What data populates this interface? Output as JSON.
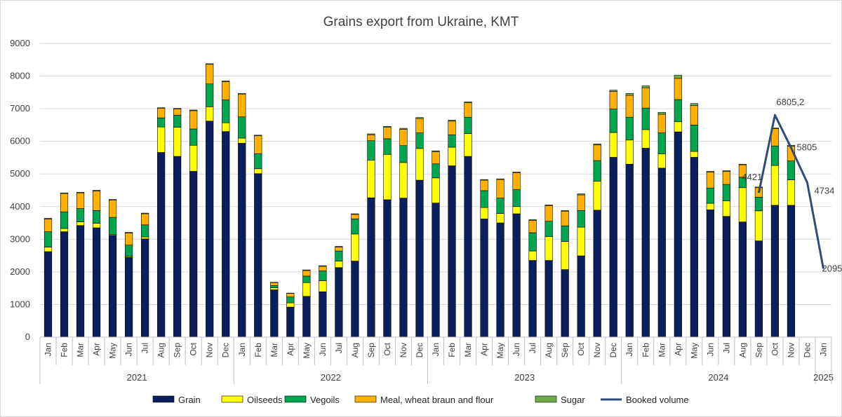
{
  "chart_data": {
    "type": "bar",
    "stacked": true,
    "title": "Grains export from Ukraine, KMT",
    "xlabel": "",
    "ylabel": "",
    "ylim": [
      0,
      9000
    ],
    "yticks": [
      0,
      1000,
      2000,
      3000,
      4000,
      5000,
      6000,
      7000,
      8000,
      9000
    ],
    "grid": true,
    "legend_position": "bottom",
    "years": [
      {
        "label": "2021",
        "months": 12
      },
      {
        "label": "2022",
        "months": 12
      },
      {
        "label": "2023",
        "months": 12
      },
      {
        "label": "2024",
        "months": 12
      },
      {
        "label": "2025",
        "months": 1
      }
    ],
    "categories": [
      "Jan",
      "Feb",
      "Mar",
      "Apr",
      "May",
      "Jun",
      "Jul",
      "Aug",
      "Sep",
      "Oct",
      "Nov",
      "Dec",
      "Jan",
      "Feb",
      "Mar",
      "Apr",
      "May",
      "Jun",
      "Jul",
      "Aug",
      "Sep",
      "Oct",
      "Nov",
      "Dec",
      "Jan",
      "Feb",
      "Mar",
      "Apr",
      "May",
      "Jun",
      "Jul",
      "Aug",
      "Sep",
      "Oct",
      "Nov",
      "Dec",
      "Jan",
      "Feb",
      "Mar",
      "Apr",
      "May",
      "Jun",
      "Jul",
      "Aug",
      "Sep",
      "Oct",
      "Nov",
      "Dec",
      "Jan"
    ],
    "series": [
      {
        "name": "Grain",
        "color": "#0c1f5c",
        "values": [
          2620,
          3230,
          3420,
          3350,
          3120,
          2450,
          3010,
          5660,
          5540,
          5080,
          6620,
          6300,
          5940,
          5010,
          1450,
          920,
          1250,
          1390,
          2130,
          2330,
          4270,
          4210,
          4260,
          4810,
          4110,
          5250,
          5540,
          3620,
          3500,
          3780,
          2350,
          2350,
          2070,
          2490,
          3890,
          5510,
          5300,
          5790,
          5180,
          6290,
          5510,
          3900,
          3700,
          3530,
          2950,
          4040,
          4040,
          null,
          null
        ]
      },
      {
        "name": "Oilseeds",
        "color": "#ffff00",
        "values": [
          140,
          100,
          110,
          140,
          30,
          30,
          60,
          780,
          890,
          800,
          440,
          270,
          160,
          150,
          60,
          130,
          420,
          340,
          200,
          830,
          1150,
          1390,
          1090,
          970,
          770,
          570,
          700,
          350,
          290,
          220,
          290,
          730,
          860,
          880,
          890,
          760,
          740,
          570,
          440,
          310,
          180,
          200,
          480,
          1050,
          920,
          1220,
          780,
          null,
          null
        ]
      },
      {
        "name": "Vegoils",
        "color": "#00a550",
        "values": [
          470,
          510,
          410,
          390,
          520,
          340,
          370,
          280,
          370,
          500,
          700,
          700,
          650,
          460,
          70,
          180,
          200,
          300,
          310,
          460,
          600,
          480,
          520,
          480,
          430,
          380,
          500,
          520,
          470,
          520,
          560,
          470,
          480,
          510,
          630,
          720,
          700,
          660,
          640,
          680,
          810,
          470,
          500,
          320,
          420,
          600,
          580,
          null,
          null
        ]
      },
      {
        "name": "Meal, wheat braun and flour",
        "color": "#ffb000",
        "values": [
          390,
          560,
          480,
          600,
          530,
          370,
          340,
          290,
          190,
          560,
          600,
          560,
          700,
          550,
          90,
          110,
          170,
          140,
          120,
          140,
          180,
          350,
          500,
          440,
          370,
          420,
          440,
          320,
          570,
          520,
          380,
          480,
          450,
          480,
          480,
          540,
          670,
          620,
          570,
          650,
          600,
          490,
          400,
          380,
          290,
          530,
          450,
          null,
          null
        ]
      },
      {
        "name": "Sugar",
        "color": "#70ad47",
        "values": [
          20,
          20,
          20,
          20,
          20,
          20,
          20,
          20,
          20,
          20,
          20,
          20,
          20,
          20,
          10,
          10,
          20,
          20,
          20,
          20,
          30,
          30,
          30,
          30,
          30,
          30,
          30,
          20,
          20,
          20,
          20,
          20,
          20,
          30,
          30,
          40,
          60,
          60,
          60,
          100,
          60,
          20,
          20,
          20,
          20,
          20,
          30,
          null,
          null
        ]
      }
    ],
    "line_series": {
      "name": "Booked volume",
      "color": "#2f4b7c",
      "start_index": 44,
      "values": [
        4421,
        6805.2,
        5805,
        4734,
        2095
      ],
      "data_labels": [
        "4421",
        "6805,2",
        "5805",
        "4734",
        "2095"
      ]
    }
  }
}
